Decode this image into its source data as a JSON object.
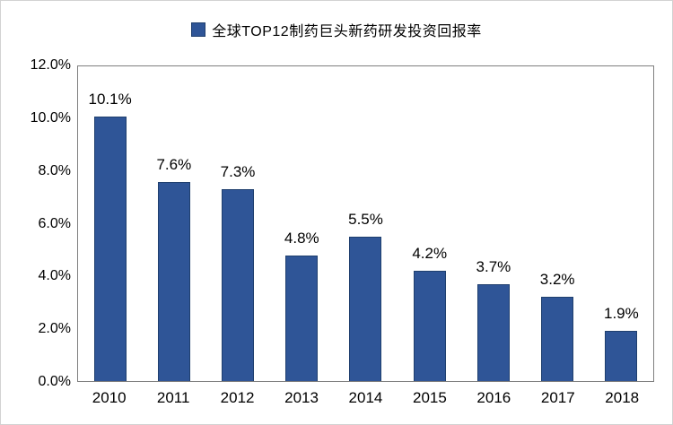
{
  "legend": {
    "label": "全球TOP12制药巨头新药研发投资回报率"
  },
  "colors": {
    "bar_fill": "#2F5597",
    "bar_border": "#1F3F6E",
    "plot_border": "#7F7F7F",
    "frame_border": "#D2D2D2",
    "text": "#000000"
  },
  "chart_data": {
    "type": "bar",
    "title": "全球TOP12制药巨头新药研发投资回报率",
    "categories": [
      "2010",
      "2011",
      "2012",
      "2013",
      "2014",
      "2015",
      "2016",
      "2017",
      "2018"
    ],
    "values": [
      10.1,
      7.6,
      7.3,
      4.8,
      5.5,
      4.2,
      3.7,
      3.2,
      1.9
    ],
    "data_labels": [
      "10.1%",
      "7.6%",
      "7.3%",
      "4.8%",
      "5.5%",
      "4.2%",
      "3.7%",
      "3.2%",
      "1.9%"
    ],
    "xlabel": "",
    "ylabel": "",
    "ylim": [
      0,
      12
    ],
    "y_ticks": [
      {
        "label": "0.0%",
        "value": 0
      },
      {
        "label": "2.0%",
        "value": 2
      },
      {
        "label": "4.0%",
        "value": 4
      },
      {
        "label": "6.0%",
        "value": 6
      },
      {
        "label": "8.0%",
        "value": 8
      },
      {
        "label": "10.0%",
        "value": 10
      },
      {
        "label": "12.0%",
        "value": 12
      }
    ],
    "grid": false,
    "legend_position": "top-center"
  }
}
